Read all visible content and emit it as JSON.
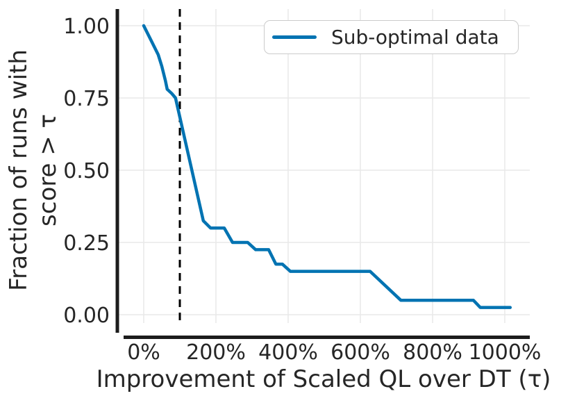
{
  "chart_data": {
    "type": "line",
    "title": "",
    "xlabel": "Improvement of Scaled QL over DT (τ)",
    "ylabel_line1": "Fraction of runs with",
    "ylabel_line2": "score > τ",
    "xlim_pct": [
      0,
      1000
    ],
    "ylim": [
      0,
      1
    ],
    "grid": true,
    "legend_position": "upper right",
    "xticks": [
      {
        "v": 0,
        "label": "0%"
      },
      {
        "v": 200,
        "label": "200%"
      },
      {
        "v": 400,
        "label": "400%"
      },
      {
        "v": 600,
        "label": "600%"
      },
      {
        "v": 800,
        "label": "800%"
      },
      {
        "v": 1000,
        "label": "1000%"
      }
    ],
    "yticks": [
      {
        "v": 0.0,
        "label": "0.00"
      },
      {
        "v": 0.25,
        "label": "0.25"
      },
      {
        "v": 0.5,
        "label": "0.50"
      },
      {
        "v": 0.75,
        "label": "0.75"
      },
      {
        "v": 1.0,
        "label": "1.00"
      }
    ],
    "annotations": [
      {
        "type": "vline",
        "x_pct": 100,
        "style": "dashed",
        "color": "#000000"
      }
    ],
    "series": [
      {
        "name": "Sub-optimal data",
        "color": "#0173b2",
        "points_pct_fraction": [
          [
            0,
            1.0
          ],
          [
            20,
            0.95
          ],
          [
            40,
            0.9
          ],
          [
            50,
            0.86
          ],
          [
            60,
            0.81
          ],
          [
            65,
            0.78
          ],
          [
            78,
            0.765
          ],
          [
            88,
            0.75
          ],
          [
            165,
            0.325
          ],
          [
            185,
            0.3
          ],
          [
            223,
            0.3
          ],
          [
            246,
            0.25
          ],
          [
            288,
            0.25
          ],
          [
            310,
            0.225
          ],
          [
            346,
            0.225
          ],
          [
            366,
            0.175
          ],
          [
            384,
            0.175
          ],
          [
            406,
            0.15
          ],
          [
            627,
            0.15
          ],
          [
            712,
            0.05
          ],
          [
            913,
            0.05
          ],
          [
            932,
            0.025
          ],
          [
            1015,
            0.025
          ]
        ]
      }
    ]
  },
  "colors": {
    "line_blue": "#0173b2",
    "threshold_black": "#000000",
    "grid_gray": "#e9e9e9",
    "text_dark": "#262626",
    "spine_dark": "#1c1c1c"
  }
}
